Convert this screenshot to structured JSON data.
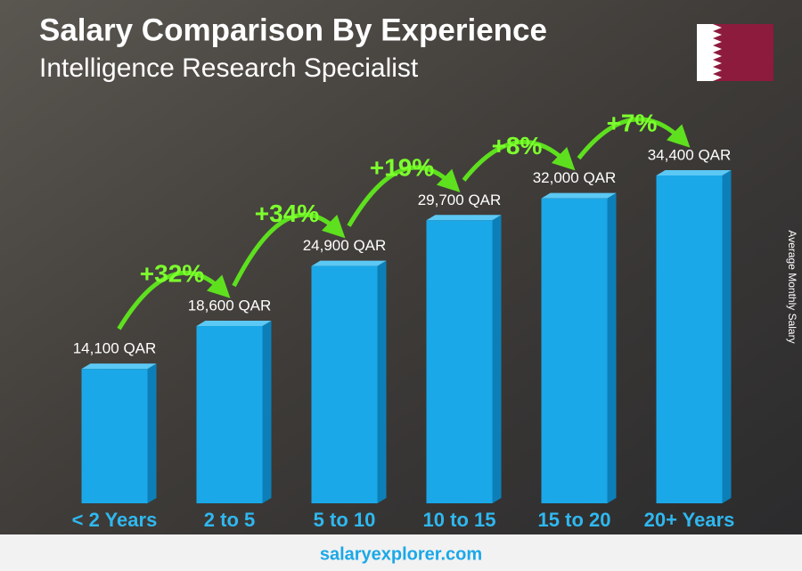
{
  "chart_data": {
    "type": "bar",
    "title": "Salary Comparison By Experience",
    "subtitle": "Intelligence Research Specialist",
    "y_axis_label": "Average Monthly Salary",
    "categories": [
      "< 2 Years",
      "2 to 5",
      "5 to 10",
      "10 to 15",
      "15 to 20",
      "20+ Years"
    ],
    "values": [
      14100,
      18600,
      24900,
      29700,
      32000,
      34400
    ],
    "value_labels": [
      "14,100 QAR",
      "18,600 QAR",
      "24,900 QAR",
      "29,700 QAR",
      "32,000 QAR",
      "34,400 QAR"
    ],
    "annotations": [
      "+32%",
      "+34%",
      "+19%",
      "+8%",
      "+7%"
    ],
    "color": "#1ba8e8",
    "footer": "salaryexplorer.com"
  }
}
